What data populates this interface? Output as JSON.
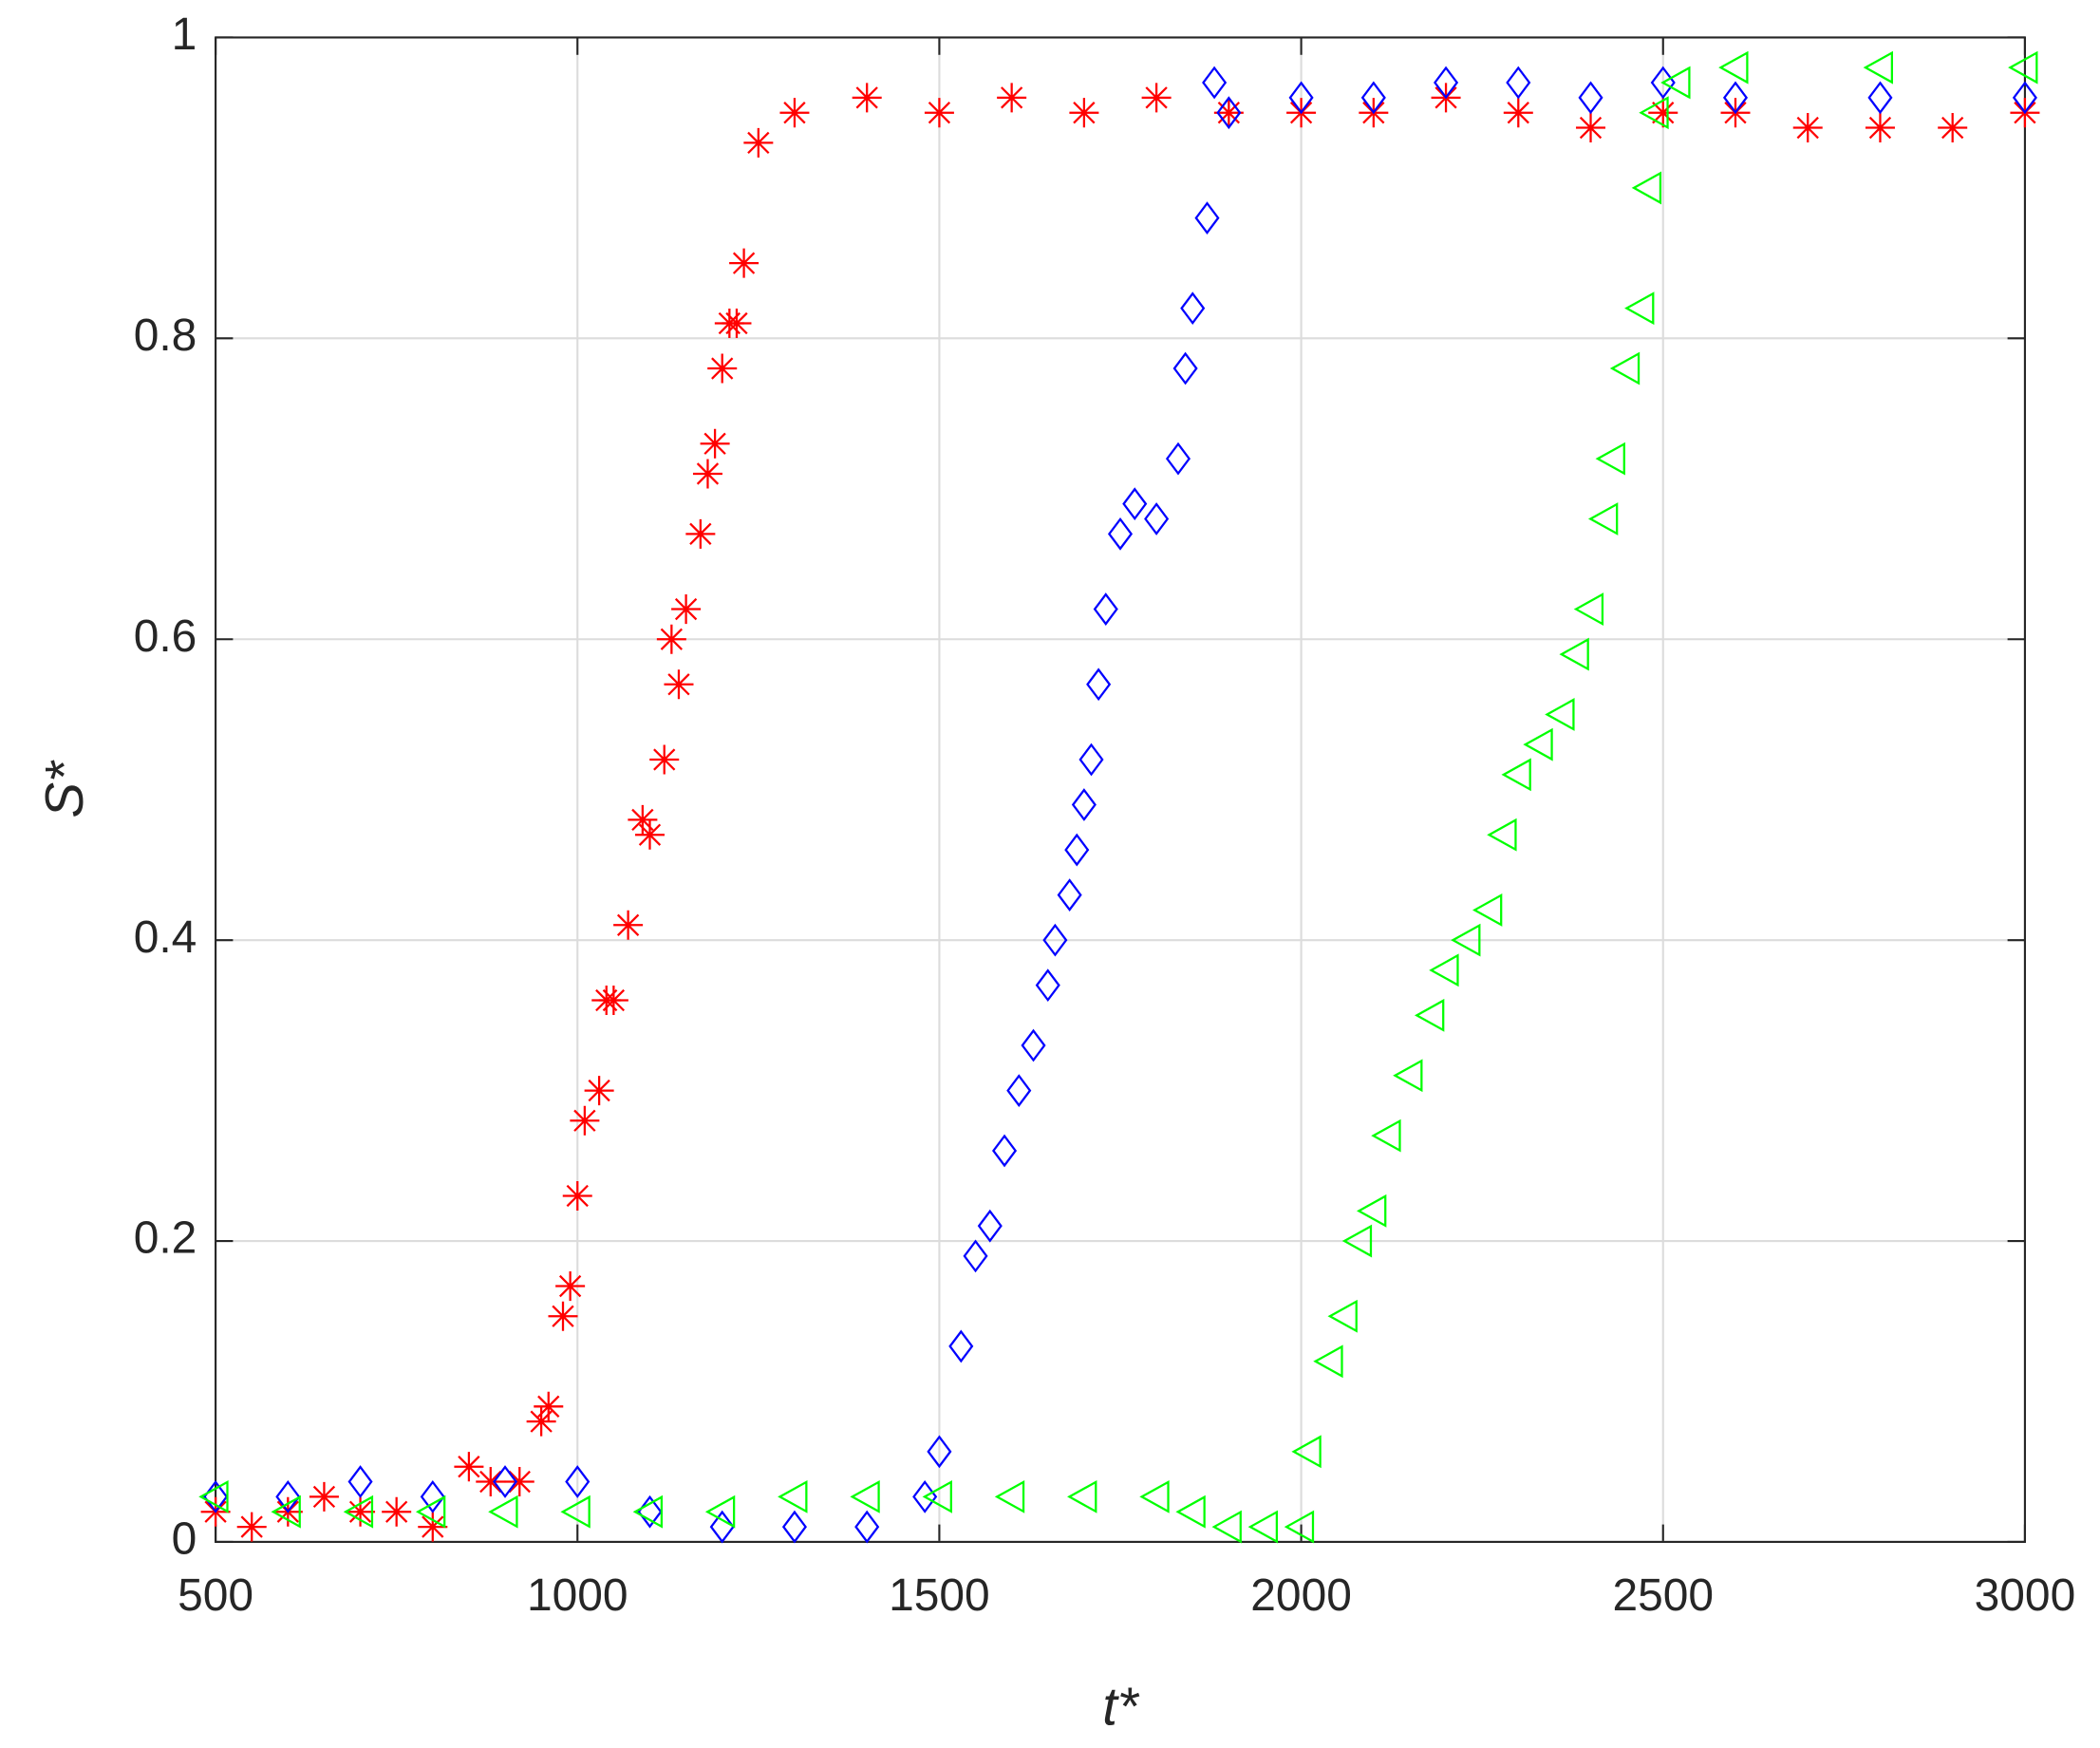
{
  "chart_data": {
    "type": "scatter",
    "xlabel": "t*",
    "ylabel": "S*",
    "xlim": [
      500,
      3000
    ],
    "ylim": [
      0,
      1
    ],
    "xticks": [
      500,
      1000,
      1500,
      2000,
      2500,
      3000
    ],
    "yticks": [
      0,
      0.2,
      0.4,
      0.6,
      0.8,
      1
    ],
    "grid": true,
    "series": [
      {
        "color": "#ff0000",
        "marker": "asterisk",
        "x": [
          500,
          550,
          600,
          650,
          700,
          750,
          800,
          850,
          880,
          920,
          950,
          960,
          980,
          990,
          1000,
          1010,
          1030,
          1040,
          1050,
          1070,
          1090,
          1100,
          1120,
          1130,
          1140,
          1150,
          1170,
          1180,
          1190,
          1200,
          1210,
          1220,
          1230,
          1250,
          1300,
          1400,
          1500,
          1600,
          1700,
          1800,
          1900,
          2000,
          2100,
          2200,
          2300,
          2400,
          2500,
          2600,
          2700,
          2800,
          2900,
          3000
        ],
        "values": [
          0.02,
          0.01,
          0.02,
          0.03,
          0.02,
          0.02,
          0.01,
          0.05,
          0.04,
          0.04,
          0.08,
          0.09,
          0.15,
          0.17,
          0.23,
          0.28,
          0.3,
          0.36,
          0.36,
          0.41,
          0.48,
          0.47,
          0.52,
          0.6,
          0.57,
          0.62,
          0.67,
          0.71,
          0.73,
          0.78,
          0.81,
          0.81,
          0.85,
          0.93,
          0.95,
          0.96,
          0.95,
          0.96,
          0.95,
          0.96,
          0.95,
          0.95,
          0.95,
          0.96,
          0.95,
          0.94,
          0.95,
          0.95,
          0.94,
          0.94,
          0.94,
          0.95
        ]
      },
      {
        "color": "#0000ff",
        "marker": "diamond",
        "x": [
          500,
          600,
          700,
          800,
          900,
          1000,
          1100,
          1200,
          1300,
          1400,
          1480,
          1500,
          1530,
          1550,
          1570,
          1590,
          1610,
          1630,
          1650,
          1660,
          1680,
          1690,
          1700,
          1710,
          1720,
          1730,
          1750,
          1770,
          1800,
          1830,
          1840,
          1850,
          1870,
          1880,
          1900,
          2000,
          2100,
          2200,
          2300,
          2400,
          2500,
          2600,
          2800,
          3000
        ],
        "values": [
          0.03,
          0.03,
          0.04,
          0.03,
          0.04,
          0.04,
          0.02,
          0.01,
          0.01,
          0.01,
          0.03,
          0.06,
          0.13,
          0.19,
          0.21,
          0.26,
          0.3,
          0.33,
          0.37,
          0.4,
          0.43,
          0.46,
          0.49,
          0.52,
          0.57,
          0.62,
          0.67,
          0.69,
          0.68,
          0.72,
          0.78,
          0.82,
          0.88,
          0.97,
          0.95,
          0.96,
          0.96,
          0.97,
          0.97,
          0.96,
          0.97,
          0.96,
          0.96,
          0.96
        ]
      },
      {
        "color": "#00ff00",
        "marker": "triangle-left",
        "x": [
          500,
          600,
          700,
          800,
          900,
          1000,
          1100,
          1200,
          1300,
          1400,
          1500,
          1600,
          1700,
          1800,
          1850,
          1900,
          1950,
          2000,
          2010,
          2040,
          2060,
          2080,
          2100,
          2120,
          2150,
          2180,
          2200,
          2230,
          2260,
          2280,
          2300,
          2330,
          2360,
          2380,
          2400,
          2420,
          2430,
          2450,
          2470,
          2480,
          2490,
          2520,
          2600,
          2800,
          3000
        ],
        "values": [
          0.03,
          0.02,
          0.02,
          0.02,
          0.02,
          0.02,
          0.02,
          0.02,
          0.03,
          0.03,
          0.03,
          0.03,
          0.03,
          0.03,
          0.02,
          0.01,
          0.01,
          0.01,
          0.06,
          0.12,
          0.15,
          0.2,
          0.22,
          0.27,
          0.31,
          0.35,
          0.38,
          0.4,
          0.42,
          0.47,
          0.51,
          0.53,
          0.55,
          0.59,
          0.62,
          0.68,
          0.72,
          0.78,
          0.82,
          0.9,
          0.95,
          0.97,
          0.98,
          0.98,
          0.98
        ]
      }
    ]
  }
}
